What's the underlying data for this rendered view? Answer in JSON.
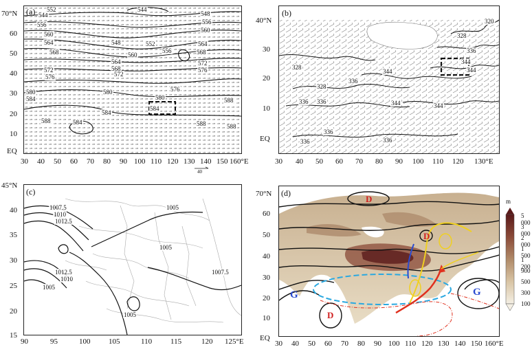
{
  "panels": {
    "a": {
      "label": "(a)",
      "lat_labels": [
        "70°N",
        "60",
        "50",
        "40",
        "30",
        "20",
        "10",
        "EQ"
      ],
      "lon_labels": [
        "30",
        "40",
        "50",
        "60",
        "70",
        "80",
        "90",
        "100",
        "110",
        "120",
        "130",
        "140",
        "150",
        "160°E"
      ],
      "contour_labels": [
        "544",
        "552",
        "556",
        "560",
        "564",
        "568",
        "572",
        "576",
        "580",
        "584",
        "588",
        "548",
        "552",
        "556",
        "560",
        "564",
        "568",
        "572",
        "576",
        "580",
        "584",
        "588",
        "544",
        "548",
        "556",
        "560",
        "564",
        "568",
        "572",
        "576",
        "580",
        "584",
        "588",
        "584",
        "588"
      ],
      "vector_scale": "40"
    },
    "b": {
      "label": "(b)",
      "lat_labels": [
        "40°N",
        "30",
        "20",
        "10",
        "EQ"
      ],
      "lon_labels": [
        "30",
        "40",
        "50",
        "60",
        "70",
        "80",
        "90",
        "100",
        "110",
        "120",
        "130°E"
      ],
      "contour_labels": [
        "320",
        "328",
        "336",
        "344",
        "328",
        "336",
        "344",
        "336",
        "344",
        "336",
        "336",
        "344",
        "328",
        "336",
        "344",
        "336"
      ]
    },
    "c": {
      "label": "(c)",
      "lat_labels": [
        "45°N",
        "40",
        "35",
        "30",
        "25",
        "20",
        "15"
      ],
      "lon_labels": [
        "90",
        "95",
        "100",
        "105",
        "110",
        "115",
        "120",
        "125°E"
      ],
      "contour_labels": [
        "1007.5",
        "1010",
        "1012.5",
        "1005",
        "1005",
        "1012.5",
        "1010",
        "1005",
        "1005",
        "1007.5"
      ]
    },
    "d": {
      "label": "(d)",
      "lat_labels": [
        "70°N",
        "60",
        "50",
        "40",
        "30",
        "20",
        "10",
        "EQ"
      ],
      "lon_labels": [
        "30",
        "40",
        "50",
        "60",
        "70",
        "80",
        "90",
        "100",
        "110",
        "120",
        "130",
        "140",
        "150",
        "160°E"
      ],
      "system_labels": {
        "low_north": "D",
        "low_east": "D",
        "low_india": "D",
        "high_west": "G",
        "high_pacific": "G"
      },
      "colorbar": {
        "unit": "m",
        "levels": [
          "5 000",
          "3 000",
          "2 000",
          "1 500",
          "1 200",
          "900",
          "500",
          "300",
          "100"
        ]
      }
    }
  },
  "colors": {
    "contour": "#111111",
    "vector": "#333333",
    "box": "#111111",
    "cyan_ellipse": "#2aa8e0",
    "red_arrow": "#e0301e",
    "yellow": "#f0d020",
    "blue_trough": "#2a4ad0",
    "dash_red": "#e0301e",
    "terrain_low": "#f2ece0",
    "terrain_high": "#5a1a1a",
    "high_letter": "#2a4ad0",
    "low_letter": "#d02020"
  }
}
